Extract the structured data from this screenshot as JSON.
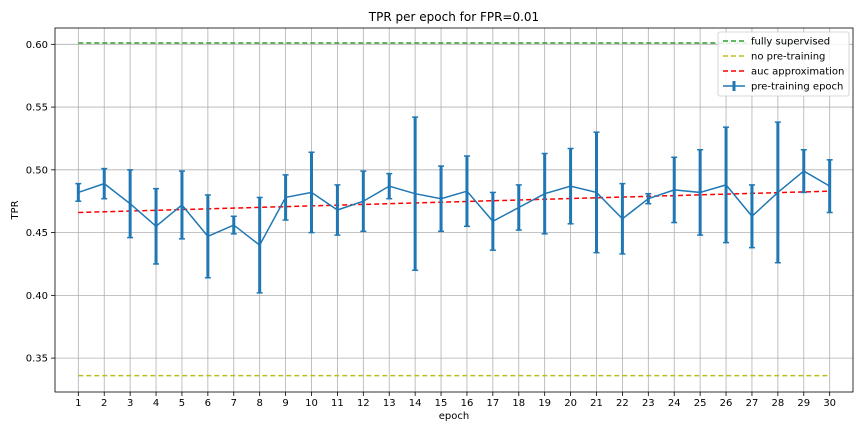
{
  "chart_data": {
    "type": "line",
    "title": "TPR per epoch for FPR=0.01",
    "xlabel": "epoch",
    "ylabel": "TPR",
    "xlim": [
      0.1,
      30.9
    ],
    "ylim": [
      0.323,
      0.613
    ],
    "x_ticks": [
      1,
      2,
      3,
      4,
      5,
      6,
      7,
      8,
      9,
      10,
      11,
      12,
      13,
      14,
      15,
      16,
      17,
      18,
      19,
      20,
      21,
      22,
      23,
      24,
      25,
      26,
      27,
      28,
      29,
      30
    ],
    "y_ticks": [
      0.35,
      0.4,
      0.45,
      0.5,
      0.55,
      0.6
    ],
    "y_tick_labels": [
      "0.35",
      "0.40",
      "0.45",
      "0.50",
      "0.55",
      "0.60"
    ],
    "grid": true,
    "legend_position": "top-right",
    "series": [
      {
        "name": "fully supervised",
        "style": "dashed",
        "color": "#2ca02c",
        "x": [
          1,
          30
        ],
        "y": [
          0.601,
          0.601
        ]
      },
      {
        "name": "no pre-training",
        "style": "dashed",
        "color": "#bcbd22",
        "x": [
          1,
          30
        ],
        "y": [
          0.336,
          0.336
        ]
      },
      {
        "name": "auc approximation",
        "style": "dashed",
        "color": "#ff0000",
        "x": [
          1,
          30
        ],
        "y": [
          0.466,
          0.483
        ]
      },
      {
        "name": "pre-training epoch",
        "style": "solid-errorbar",
        "color": "#1f77b4",
        "x": [
          1,
          2,
          3,
          4,
          5,
          6,
          7,
          8,
          9,
          10,
          11,
          12,
          13,
          14,
          15,
          16,
          17,
          18,
          19,
          20,
          21,
          22,
          23,
          24,
          25,
          26,
          27,
          28,
          29,
          30
        ],
        "y": [
          0.482,
          0.489,
          0.473,
          0.455,
          0.472,
          0.447,
          0.456,
          0.44,
          0.478,
          0.482,
          0.468,
          0.475,
          0.487,
          0.481,
          0.477,
          0.483,
          0.459,
          0.47,
          0.481,
          0.487,
          0.482,
          0.461,
          0.477,
          0.484,
          0.482,
          0.488,
          0.463,
          0.482,
          0.499,
          0.487
        ],
        "error": [
          0.007,
          0.012,
          0.027,
          0.03,
          0.027,
          0.033,
          0.007,
          0.038,
          0.018,
          0.032,
          0.02,
          0.024,
          0.01,
          0.061,
          0.026,
          0.028,
          0.023,
          0.018,
          0.032,
          0.03,
          0.048,
          0.028,
          0.004,
          0.026,
          0.034,
          0.046,
          0.025,
          0.056,
          0.017,
          0.021
        ]
      }
    ]
  }
}
